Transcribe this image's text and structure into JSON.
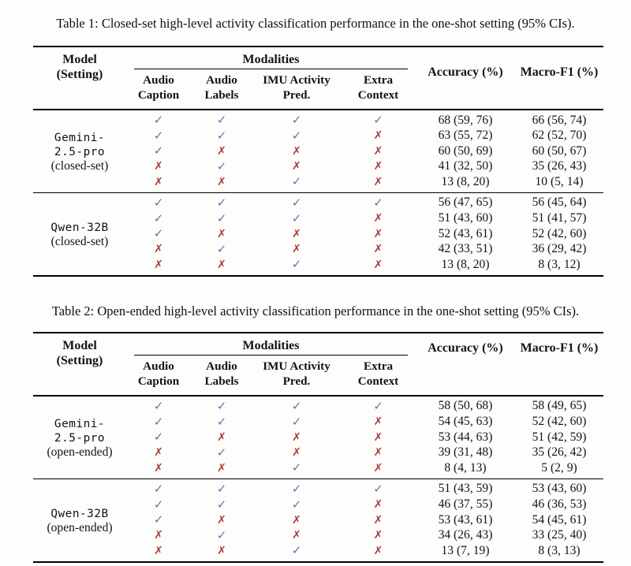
{
  "style": {
    "check_color": "#4d80ae",
    "cross_color": "#a93a36",
    "rule_color": "#000000",
    "background": "#fdfdfd"
  },
  "glyphs": {
    "check": "✓",
    "cross": "✗"
  },
  "tables": [
    {
      "id": "table-1",
      "caption": "Table 1: Closed-set high-level activity classification performance in the one-shot setting (95% CIs).",
      "header": {
        "model": "Model\n(Setting)",
        "modalities": "Modalities",
        "subcolumns": [
          "Audio\nCaption",
          "Audio\nLabels",
          "IMU Activity\nPred.",
          "Extra\nContext"
        ],
        "accuracy": "Accuracy (%)",
        "macro_f1": "Macro-F1 (%)"
      },
      "sections": [
        {
          "model_lines": [
            "Gemini-",
            "2.5-pro"
          ],
          "setting": "(closed-set)",
          "rows": [
            {
              "checks": [
                true,
                true,
                true,
                true
              ],
              "accuracy": "68 (59, 76)",
              "macro_f1": "66 (56, 74)"
            },
            {
              "checks": [
                true,
                true,
                true,
                false
              ],
              "accuracy": "63 (55, 72)",
              "macro_f1": "62 (52, 70)"
            },
            {
              "checks": [
                true,
                false,
                false,
                false
              ],
              "accuracy": "60 (50, 69)",
              "macro_f1": "60 (50, 67)"
            },
            {
              "checks": [
                false,
                true,
                false,
                false
              ],
              "accuracy": "41 (32, 50)",
              "macro_f1": "35 (26, 43)"
            },
            {
              "checks": [
                false,
                false,
                true,
                false
              ],
              "accuracy": "13 (8, 20)",
              "macro_f1": "10 (5, 14)"
            }
          ]
        },
        {
          "model_lines": [
            "Qwen-32B"
          ],
          "setting": "(closed-set)",
          "rows": [
            {
              "checks": [
                true,
                true,
                true,
                true
              ],
              "accuracy": "56 (47, 65)",
              "macro_f1": "56 (45, 64)"
            },
            {
              "checks": [
                true,
                true,
                true,
                false
              ],
              "accuracy": "51 (43, 60)",
              "macro_f1": "51 (41, 57)"
            },
            {
              "checks": [
                true,
                false,
                false,
                false
              ],
              "accuracy": "52 (43, 61)",
              "macro_f1": "52 (42, 60)"
            },
            {
              "checks": [
                false,
                true,
                false,
                false
              ],
              "accuracy": "42 (33, 51)",
              "macro_f1": "36 (29, 42)"
            },
            {
              "checks": [
                false,
                false,
                true,
                false
              ],
              "accuracy": "13 (8, 20)",
              "macro_f1": "8 (3, 12)"
            }
          ]
        }
      ]
    },
    {
      "id": "table-2",
      "caption": "Table 2: Open-ended high-level activity classification performance in the one-shot setting (95% CIs).",
      "header": {
        "model": "Model\n(Setting)",
        "modalities": "Modalities",
        "subcolumns": [
          "Audio\nCaption",
          "Audio\nLabels",
          "IMU Activity\nPred.",
          "Extra\nContext"
        ],
        "accuracy": "Accuracy (%)",
        "macro_f1": "Macro-F1 (%)"
      },
      "sections": [
        {
          "model_lines": [
            "Gemini-",
            "2.5-pro"
          ],
          "setting": "(open-ended)",
          "rows": [
            {
              "checks": [
                true,
                true,
                true,
                true
              ],
              "accuracy": "58 (50, 68)",
              "macro_f1": "58 (49, 65)"
            },
            {
              "checks": [
                true,
                true,
                true,
                false
              ],
              "accuracy": "54 (45, 63)",
              "macro_f1": "52 (42, 60)"
            },
            {
              "checks": [
                true,
                false,
                false,
                false
              ],
              "accuracy": "53 (44, 63)",
              "macro_f1": "51 (42, 59)"
            },
            {
              "checks": [
                false,
                true,
                false,
                false
              ],
              "accuracy": "39 (31, 48)",
              "macro_f1": "35 (26, 42)"
            },
            {
              "checks": [
                false,
                false,
                true,
                false
              ],
              "accuracy": "8 (4, 13)",
              "macro_f1": "5 (2, 9)"
            }
          ]
        },
        {
          "model_lines": [
            "Qwen-32B"
          ],
          "setting": "(open-ended)",
          "rows": [
            {
              "checks": [
                true,
                true,
                true,
                true
              ],
              "accuracy": "51 (43, 59)",
              "macro_f1": "53 (43, 60)"
            },
            {
              "checks": [
                true,
                true,
                true,
                false
              ],
              "accuracy": "46 (37, 55)",
              "macro_f1": "46 (36, 53)"
            },
            {
              "checks": [
                true,
                false,
                false,
                false
              ],
              "accuracy": "53 (43, 61)",
              "macro_f1": "54 (45, 61)"
            },
            {
              "checks": [
                false,
                true,
                false,
                false
              ],
              "accuracy": "34 (26, 43)",
              "macro_f1": "33 (25, 40)"
            },
            {
              "checks": [
                false,
                false,
                true,
                false
              ],
              "accuracy": "13 (7, 19)",
              "macro_f1": "8 (3, 13)"
            }
          ]
        }
      ]
    }
  ]
}
